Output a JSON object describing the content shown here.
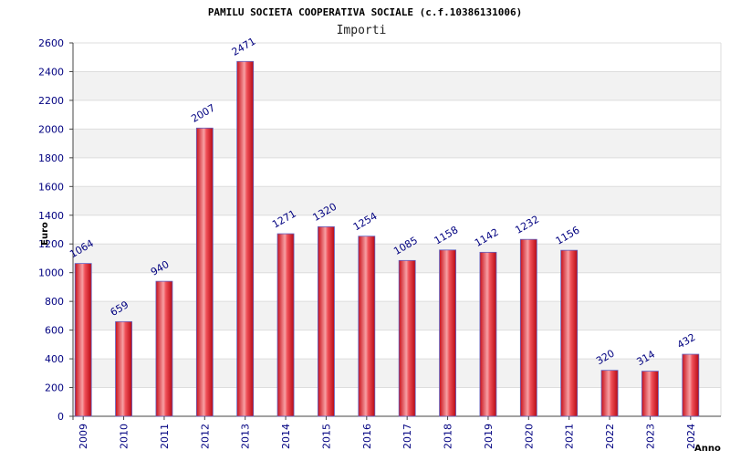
{
  "chart_data": {
    "type": "bar",
    "title": "PAMILU SOCIETA COOPERATIVA SOCIALE (c.f.10386131006)",
    "subtitle": "Importi",
    "ylabel": "Euro",
    "xlabel": "Anno",
    "ylim": [
      0,
      2600
    ],
    "yticks": [
      0,
      200,
      400,
      600,
      800,
      1000,
      1200,
      1400,
      1600,
      1800,
      2000,
      2200,
      2400,
      2600
    ],
    "grid": true,
    "categories": [
      "2009",
      "2010",
      "2011",
      "2012",
      "2013",
      "2014",
      "2015",
      "2016",
      "2017",
      "2018",
      "2019",
      "2020",
      "2021",
      "2022",
      "2023",
      "2024"
    ],
    "values": [
      1064,
      659,
      940,
      2007,
      2471,
      1271,
      1320,
      1254,
      1085,
      1158,
      1142,
      1232,
      1156,
      320,
      314,
      432
    ],
    "bar_color": "#e8202a",
    "value_label_color": "#000080"
  }
}
